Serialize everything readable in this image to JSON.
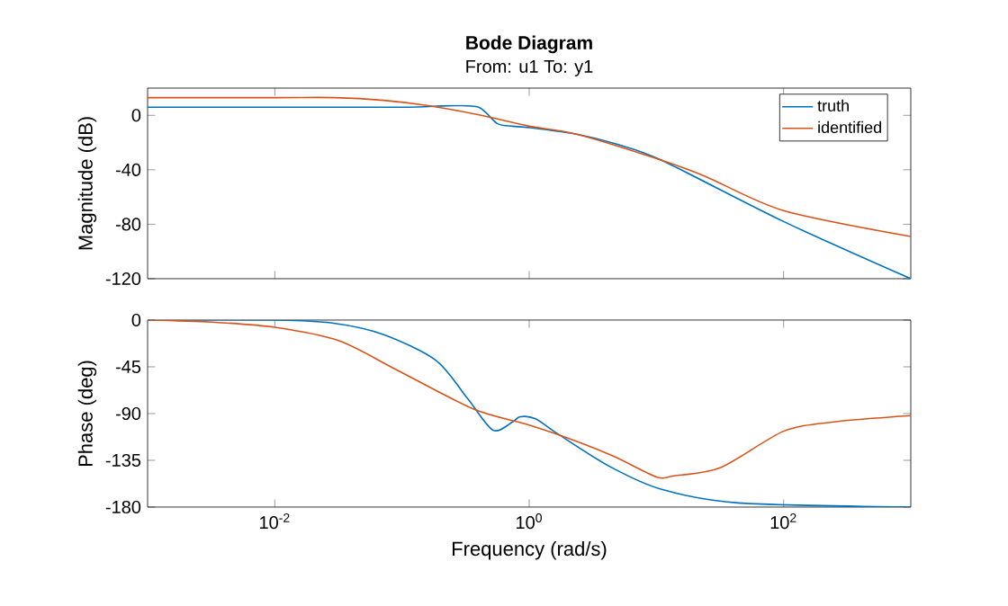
{
  "chart_data": [
    {
      "type": "line",
      "title": "Bode Diagram",
      "subtitle": "From: u1  To: y1",
      "ylabel": "Magnitude (dB)",
      "log": "x",
      "xlim": [
        0.001,
        1000
      ],
      "ylim": [
        -120,
        20
      ],
      "yticks": [
        0,
        -40,
        -80,
        -120
      ],
      "xticks": [
        {
          "value": 0.01,
          "label": null
        },
        {
          "value": 1,
          "label": null
        },
        {
          "value": 100,
          "label": null
        }
      ],
      "tick_labels": "y",
      "legend": "top right",
      "series": [
        {
          "name": "truth",
          "color": "#0072bd",
          "x": [
            0.001,
            0.01,
            0.1,
            0.23,
            0.4,
            0.56,
            0.74,
            1,
            2.4,
            4.8,
            11,
            100,
            1000
          ],
          "values": [
            6,
            6,
            6,
            7,
            6,
            -6,
            -8,
            -9,
            -14,
            -21,
            -33,
            -78,
            -120
          ]
        },
        {
          "name": "identified",
          "color": "#d95319",
          "x": [
            0.001,
            0.01,
            0.03,
            0.072,
            0.166,
            0.42,
            1,
            2.4,
            11,
            24.5,
            100,
            1000
          ],
          "values": [
            13,
            13,
            13,
            11,
            7,
            0,
            -8,
            -14,
            -33,
            -45,
            -70,
            -89
          ]
        }
      ]
    },
    {
      "type": "line",
      "xlabel": "Frequency (rad/s)",
      "ylabel": "Phase (deg)",
      "log": "x",
      "xlim": [
        0.001,
        1000
      ],
      "ylim": [
        -180,
        0
      ],
      "yticks": [
        0,
        -45,
        -90,
        -135,
        -180
      ],
      "xticks": [
        {
          "value": 0.01,
          "label": "10$^{-2}$"
        },
        {
          "value": 1,
          "label": "10$^{0}$"
        },
        {
          "value": 100,
          "label": "10$^{2}$"
        }
      ],
      "series": [
        {
          "color": "#0072bd",
          "x": [
            0.001,
            0.01,
            0.029,
            0.072,
            0.186,
            0.33,
            0.52,
            0.74,
            0.85,
            1.12,
            1.7,
            4.3,
            11,
            44,
            1000
          ],
          "values": [
            0,
            0,
            -3,
            -14,
            -39,
            -76,
            -106,
            -98,
            -93,
            -95,
            -110,
            -141,
            -163,
            -176,
            -180
          ]
        },
        {
          "color": "#d95319",
          "x": [
            0.001,
            0.0032,
            0.01,
            0.032,
            0.091,
            0.37,
            1,
            2.4,
            4.8,
            10,
            13.8,
            32,
            100,
            250,
            1000
          ],
          "values": [
            0,
            -2,
            -7,
            -20,
            -48,
            -86,
            -101,
            -117,
            -132,
            -151,
            -150,
            -142,
            -107,
            -98,
            -92
          ]
        }
      ]
    }
  ]
}
